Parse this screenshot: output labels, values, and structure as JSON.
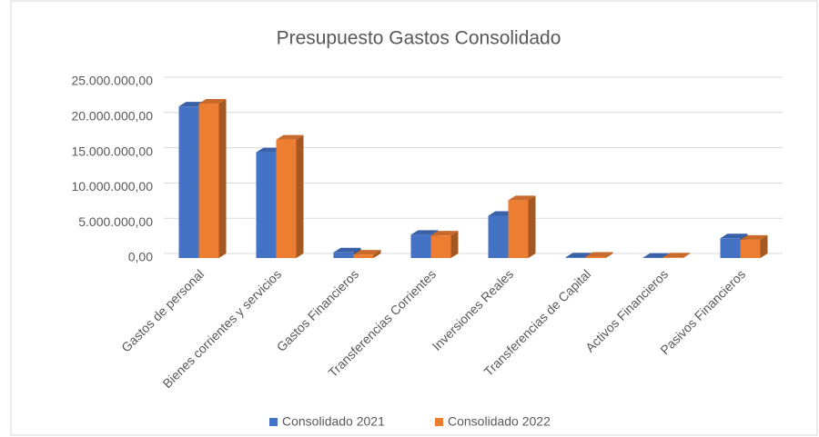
{
  "chart_data": {
    "type": "bar3d",
    "title": "Presupuesto Gastos Consolidado",
    "categories": [
      "Gastos de personal",
      "Bienes corrientes y servicios",
      "Gastos Financieros",
      "Transferencias Corrientes",
      "Inversiones Reales",
      "Transferencias de Capital",
      "Activos Financieros",
      "Pasivos Financieros"
    ],
    "series": [
      {
        "name": "Consolidado 2021",
        "color": "#4472c4",
        "values": [
          21500000,
          15000000,
          800000,
          3300000,
          6000000,
          100000,
          50000,
          2800000
        ]
      },
      {
        "name": "Consolidado 2022",
        "color": "#ed7d31",
        "values": [
          21900000,
          16800000,
          500000,
          3200000,
          8200000,
          200000,
          100000,
          2600000
        ]
      }
    ],
    "ylim": [
      0,
      25000000
    ],
    "yticks": [
      {
        "value": 0,
        "label": "0,00"
      },
      {
        "value": 5000000,
        "label": "5.000.000,00"
      },
      {
        "value": 10000000,
        "label": "10.000.000,00"
      },
      {
        "value": 15000000,
        "label": "15.000.000,00"
      },
      {
        "value": 20000000,
        "label": "20.000.000,00"
      },
      {
        "value": 25000000,
        "label": "25.000.000,00"
      }
    ],
    "grid": true,
    "legend": "bottom"
  }
}
